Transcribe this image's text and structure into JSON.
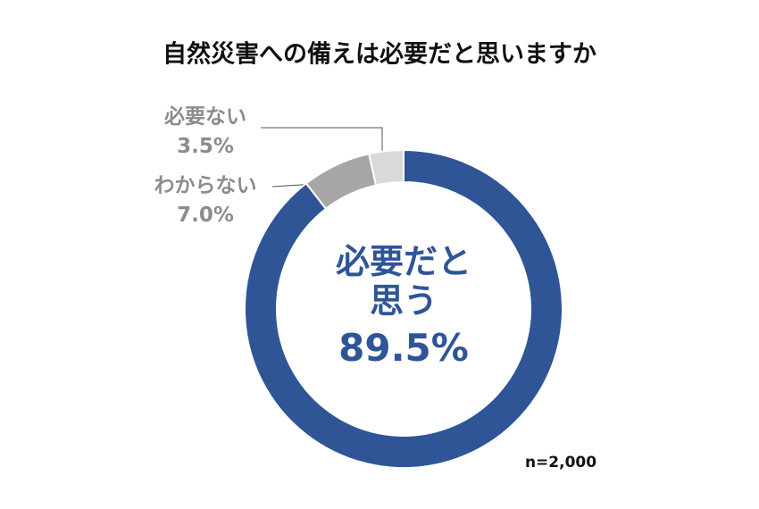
{
  "chart_data": {
    "type": "donut",
    "title": "自然災害への備えは必要だと思いますか",
    "categories": [
      "必要だと思う",
      "わからない",
      "必要ない"
    ],
    "values": [
      89.5,
      7.0,
      3.5
    ],
    "value_labels": [
      "89.5%",
      "7.0%",
      "3.5%"
    ],
    "colors": [
      "#2f5597",
      "#a6a6a6",
      "#d9d9d9"
    ],
    "note": "n=2,000"
  }
}
